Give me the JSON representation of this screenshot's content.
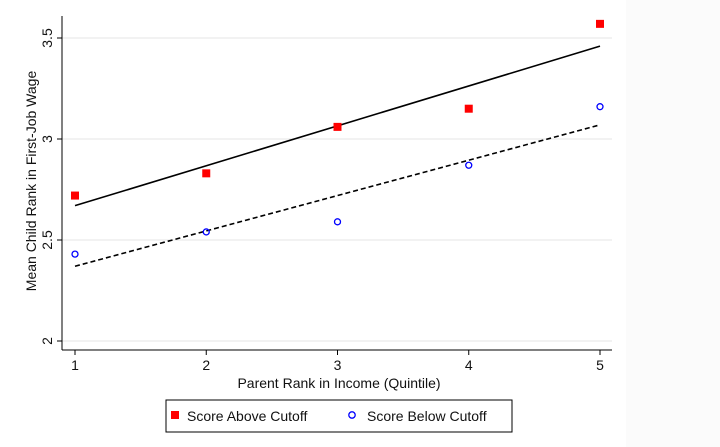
{
  "chart_data": {
    "type": "scatter",
    "xlabel": "Parent Rank in Income (Quintile)",
    "ylabel": "Mean Child Rank in First-Job Wage",
    "xlim": [
      1,
      5
    ],
    "ylim": [
      2,
      3.5
    ],
    "xticks": [
      1,
      2,
      3,
      4,
      5
    ],
    "yticks": [
      2,
      2.5,
      3,
      3.5
    ],
    "ytick_labels": [
      "2",
      "2.5",
      "3",
      "3.5"
    ],
    "grid": "horizontal",
    "legend_position": "bottom-center",
    "series": [
      {
        "name": "Score Above Cutoff",
        "marker": "filled-square",
        "color": "#ff0000",
        "x": [
          1,
          2,
          3,
          4,
          5
        ],
        "y": [
          2.72,
          2.83,
          3.06,
          3.15,
          3.57
        ],
        "fit": {
          "style": "solid",
          "color": "#000000",
          "y_at_x1": 2.67,
          "y_at_x5": 3.46
        }
      },
      {
        "name": "Score Below Cutoff",
        "marker": "hollow-circle",
        "color": "#0000ff",
        "x": [
          1,
          2,
          3,
          4,
          5
        ],
        "y": [
          2.43,
          2.54,
          2.59,
          2.87,
          3.16
        ],
        "fit": {
          "style": "dashed",
          "color": "#000000",
          "y_at_x1": 2.37,
          "y_at_x5": 3.07
        }
      }
    ]
  }
}
